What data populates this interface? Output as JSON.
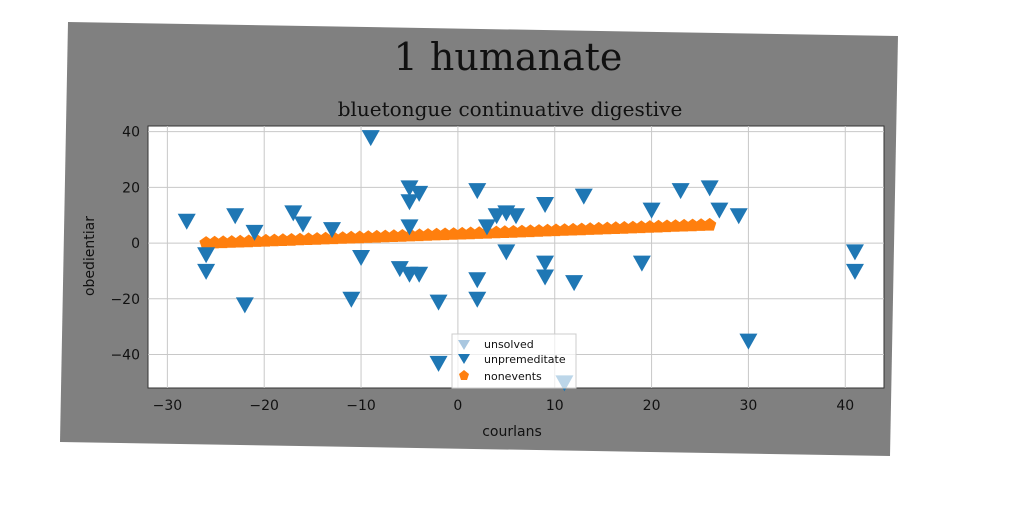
{
  "chart_data": {
    "type": "scatter",
    "title": "1 humanate",
    "subtitle": "bluetongue continuative digestive",
    "xlabel": "courlans",
    "ylabel": "obedientiar",
    "xlim": [
      -32,
      44
    ],
    "ylim": [
      -52,
      42
    ],
    "xticks": [
      -30,
      -20,
      -10,
      0,
      10,
      20,
      30,
      40
    ],
    "yticks": [
      -40,
      -20,
      0,
      20,
      40
    ],
    "grid": true,
    "legend_position": "lower-center",
    "series": [
      {
        "name": "unsolved",
        "marker": "triangle-down",
        "color": "#a9c7e0",
        "points": []
      },
      {
        "name": "unpremeditate",
        "marker": "triangle-down",
        "color": "#1f77b4",
        "points": [
          [
            -28,
            8
          ],
          [
            -26,
            -4
          ],
          [
            -26,
            -10
          ],
          [
            -23,
            10
          ],
          [
            -21,
            4
          ],
          [
            -22,
            -22
          ],
          [
            -17,
            11
          ],
          [
            -16,
            7
          ],
          [
            -13,
            5
          ],
          [
            -11,
            -20
          ],
          [
            -10,
            -5
          ],
          [
            -9,
            38
          ],
          [
            -6,
            -9
          ],
          [
            -5,
            -11
          ],
          [
            -5,
            6
          ],
          [
            -5,
            20
          ],
          [
            -5,
            15
          ],
          [
            -4,
            18
          ],
          [
            -4,
            -11
          ],
          [
            -2,
            -21
          ],
          [
            -2,
            -43
          ],
          [
            2,
            19
          ],
          [
            2,
            -13
          ],
          [
            2,
            -20
          ],
          [
            3,
            6
          ],
          [
            4,
            10
          ],
          [
            5,
            -3
          ],
          [
            5,
            11
          ],
          [
            6,
            10
          ],
          [
            9,
            -12
          ],
          [
            9,
            -7
          ],
          [
            9,
            14
          ],
          [
            12,
            -14
          ],
          [
            13,
            17
          ],
          [
            19,
            -7
          ],
          [
            20,
            12
          ],
          [
            23,
            19
          ],
          [
            26,
            20
          ],
          [
            27,
            12
          ],
          [
            29,
            10
          ],
          [
            30,
            -35
          ],
          [
            41,
            -10
          ],
          [
            41,
            -3
          ],
          [
            11,
            -50
          ]
        ]
      },
      {
        "name": "nonevents",
        "marker": "pentagon",
        "color": "#ff7f0e",
        "line": {
          "x0": -26,
          "x1": 26,
          "y0": 0,
          "y1": 6.5,
          "count": 60
        }
      }
    ]
  },
  "colors": {
    "figure_bg": "#808080",
    "axes_bg": "#ffffff",
    "grid": "#c8c8c8"
  }
}
